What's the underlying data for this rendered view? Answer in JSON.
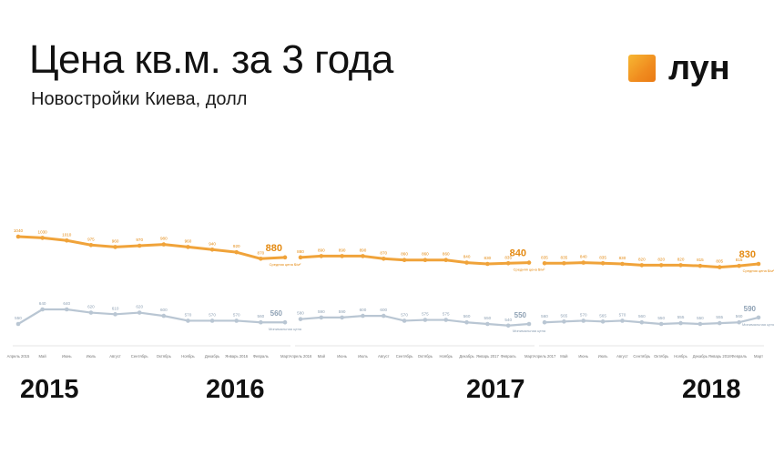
{
  "header": {
    "title": "Цена кв.м. за 3 года",
    "subtitle": "Новостройки Киева, долл"
  },
  "logo": {
    "text": "лун",
    "mark_color": "#f29a22"
  },
  "colors": {
    "avg": "#f0a33a",
    "avg_dark": "#e48a12",
    "min": "#b9c6d3",
    "min_dark": "#8ea1b4"
  },
  "chart_data": [
    {
      "type": "line",
      "year_label": "2015",
      "x": [
        "Апрель 2015",
        "Май",
        "Июнь",
        "Июль",
        "Август",
        "Сентябрь",
        "Октябрь",
        "Ноябрь",
        "Декабрь",
        "Январь 2016",
        "Февраль",
        "Март"
      ],
      "series": [
        {
          "name": "Средняя цена $/м²",
          "values": [
            1040,
            1030,
            1010,
            975,
            960,
            970,
            980,
            960,
            940,
            920,
            870,
            880
          ]
        },
        {
          "name": "Минимальная цена",
          "values": [
            550,
            640,
            640,
            620,
            610,
            620,
            600,
            570,
            570,
            570,
            560,
            560
          ]
        }
      ]
    },
    {
      "type": "line",
      "year_label": "2016",
      "x": [
        "Апрель 2016",
        "Май",
        "Июнь",
        "Июль",
        "Август",
        "Сентябрь",
        "Октябрь",
        "Ноябрь",
        "Декабрь",
        "Январь 2017",
        "Февраль",
        "Март"
      ],
      "series": [
        {
          "name": "Средняя цена $/м²",
          "values": [
            880,
            890,
            890,
            890,
            870,
            860,
            860,
            860,
            840,
            830,
            835,
            840
          ]
        },
        {
          "name": "Минимальная цена",
          "values": [
            580,
            590,
            590,
            600,
            600,
            570,
            575,
            575,
            560,
            550,
            540,
            550
          ]
        }
      ]
    },
    {
      "type": "line",
      "year_label": "2017",
      "x": [
        "Апрель 2017",
        "Май",
        "Июнь",
        "Июль",
        "Август",
        "Сентябрь",
        "Октябрь",
        "Ноябрь",
        "Декабрь",
        "Январь 2018",
        "Февраль",
        "Март"
      ],
      "series": [
        {
          "name": "Средняя цена $/м²",
          "values": [
            835,
            835,
            840,
            835,
            830,
            820,
            820,
            820,
            815,
            805,
            815,
            830
          ]
        },
        {
          "name": "Минимальная цена",
          "values": [
            560,
            565,
            570,
            565,
            570,
            560,
            550,
            555,
            550,
            555,
            560,
            590
          ]
        }
      ]
    }
  ],
  "end_labels": {
    "avg": [
      "880",
      "840",
      "830"
    ],
    "min": [
      "560",
      "550",
      "590"
    ]
  },
  "years": [
    "2015",
    "2016",
    "2017",
    "2018"
  ]
}
